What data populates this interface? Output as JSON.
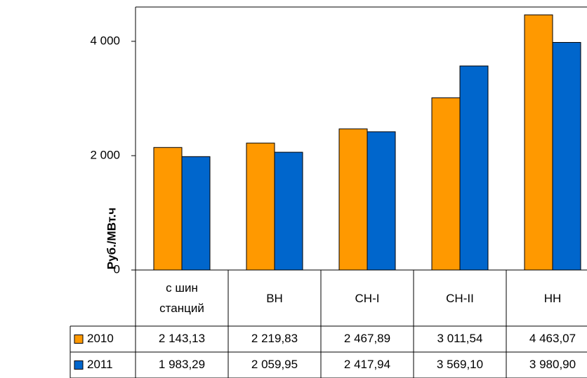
{
  "chart_data": {
    "type": "bar",
    "y_label": "Руб./МВт.ч",
    "categories": [
      "с шин станций",
      "ВН",
      "СН-I",
      "СН-II",
      "НН"
    ],
    "series": [
      {
        "name": "2010",
        "color": "#FF9900",
        "values": [
          2143.13,
          2219.83,
          2467.89,
          3011.54,
          4463.07
        ],
        "value_labels": [
          "2 143,13",
          "2 219,83",
          "2 467,89",
          "3 011,54",
          "4 463,07"
        ]
      },
      {
        "name": "2011",
        "color": "#0066CC",
        "values": [
          1983.29,
          2059.95,
          2417.94,
          3569.1,
          3980.9
        ],
        "value_labels": [
          "1 983,29",
          "2 059,95",
          "2 417,94",
          "3 569,10",
          "3 980,90"
        ]
      }
    ],
    "ylim": [
      0,
      4600
    ],
    "yticks": [
      0,
      {
        "value": 2000,
        "label": "2 000"
      },
      {
        "value": 4000,
        "label": "4 000"
      }
    ]
  }
}
